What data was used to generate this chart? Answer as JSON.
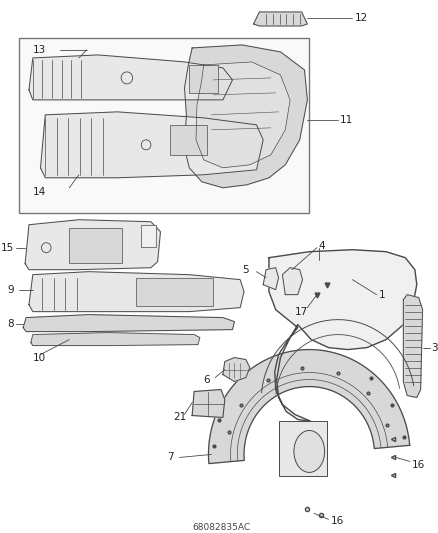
{
  "bg_color": "#ffffff",
  "line_color": "#4a4a4a",
  "fig_width": 4.38,
  "fig_height": 5.33,
  "dpi": 100,
  "part_fill": "#e8e8e8",
  "part_fill2": "#d8d8d8",
  "part_fill3": "#f0f0f0",
  "label_fontsize": 7.5,
  "leader_lw": 0.6,
  "part_lw": 0.7,
  "box_stroke": "#777777"
}
